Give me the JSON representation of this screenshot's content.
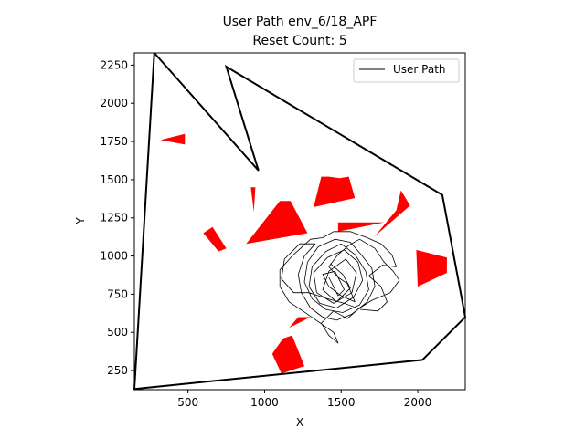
{
  "chart_data": {
    "type": "line",
    "title": "User Path env_6/18_APF",
    "subtitle": "Reset Count: 5",
    "xlabel": "X",
    "ylabel": "Y",
    "xlim": [
      150,
      2310
    ],
    "ylim": [
      125,
      2330
    ],
    "xticks": [
      500,
      1000,
      1500,
      2000
    ],
    "yticks": [
      250,
      500,
      750,
      1000,
      1250,
      1500,
      1750,
      2000,
      2250
    ],
    "grid": false,
    "legend": {
      "position": "top-right",
      "entries": [
        "User Path"
      ]
    },
    "boundary": {
      "name": "boundary",
      "color": "#000000",
      "points": [
        [
          280,
          2330
        ],
        [
          150,
          130
        ],
        [
          2030,
          320
        ],
        [
          2310,
          600
        ],
        [
          2160,
          1400
        ],
        [
          750,
          2240
        ],
        [
          960,
          1560
        ],
        [
          280,
          2330
        ]
      ]
    },
    "obstacles": {
      "color": "#ff0000",
      "polygons": [
        [
          [
            320,
            1760
          ],
          [
            480,
            1800
          ],
          [
            480,
            1730
          ]
        ],
        [
          [
            910,
            1450
          ],
          [
            940,
            1450
          ],
          [
            930,
            1290
          ]
        ],
        [
          [
            600,
            1150
          ],
          [
            660,
            1190
          ],
          [
            750,
            1050
          ],
          [
            700,
            1030
          ]
        ],
        [
          [
            880,
            1080
          ],
          [
            1100,
            1360
          ],
          [
            1170,
            1360
          ],
          [
            1280,
            1150
          ]
        ],
        [
          [
            1370,
            1520
          ],
          [
            1420,
            1520
          ],
          [
            1490,
            1510
          ],
          [
            1550,
            1520
          ],
          [
            1590,
            1380
          ],
          [
            1320,
            1320
          ]
        ],
        [
          [
            1480,
            1220
          ],
          [
            1780,
            1220
          ],
          [
            1480,
            1160
          ]
        ],
        [
          [
            1720,
            1130
          ],
          [
            1860,
            1300
          ],
          [
            1890,
            1430
          ],
          [
            1950,
            1330
          ]
        ],
        [
          [
            1990,
            1040
          ],
          [
            2190,
            990
          ],
          [
            2190,
            890
          ],
          [
            2000,
            800
          ]
        ],
        [
          [
            1160,
            530
          ],
          [
            1220,
            600
          ],
          [
            1300,
            600
          ]
        ],
        [
          [
            1050,
            360
          ],
          [
            1120,
            460
          ],
          [
            1180,
            480
          ],
          [
            1260,
            280
          ],
          [
            1110,
            230
          ]
        ]
      ]
    },
    "series": [
      {
        "name": "User Path",
        "color": "#000000",
        "points": [
          [
            1430,
            950
          ],
          [
            1510,
            880
          ],
          [
            1560,
            790
          ],
          [
            1470,
            700
          ],
          [
            1380,
            780
          ],
          [
            1420,
            900
          ],
          [
            1530,
            980
          ],
          [
            1600,
            890
          ],
          [
            1570,
            760
          ],
          [
            1450,
            690
          ],
          [
            1340,
            760
          ],
          [
            1320,
            890
          ],
          [
            1410,
            990
          ],
          [
            1520,
            1040
          ],
          [
            1610,
            960
          ],
          [
            1640,
            840
          ],
          [
            1580,
            730
          ],
          [
            1470,
            660
          ],
          [
            1360,
            690
          ],
          [
            1290,
            800
          ],
          [
            1310,
            930
          ],
          [
            1400,
            1030
          ],
          [
            1500,
            1080
          ],
          [
            1590,
            1010
          ],
          [
            1660,
            900
          ],
          [
            1680,
            780
          ],
          [
            1620,
            680
          ],
          [
            1510,
            630
          ],
          [
            1400,
            650
          ],
          [
            1310,
            720
          ],
          [
            1260,
            830
          ],
          [
            1280,
            960
          ],
          [
            1350,
            1060
          ],
          [
            1460,
            1110
          ],
          [
            1560,
            1090
          ],
          [
            1630,
            1010
          ],
          [
            1700,
            920
          ],
          [
            1720,
            800
          ],
          [
            1670,
            700
          ],
          [
            1570,
            620
          ],
          [
            1470,
            580
          ],
          [
            1380,
            600
          ],
          [
            1300,
            660
          ],
          [
            1240,
            760
          ],
          [
            1220,
            880
          ],
          [
            1260,
            1000
          ],
          [
            1330,
            1080
          ],
          [
            1230,
            1080
          ],
          [
            1130,
            980
          ],
          [
            1110,
            850
          ],
          [
            1190,
            760
          ],
          [
            1290,
            760
          ],
          [
            1410,
            720
          ],
          [
            1520,
            690
          ],
          [
            1630,
            650
          ],
          [
            1740,
            640
          ],
          [
            1800,
            700
          ],
          [
            1760,
            800
          ],
          [
            1680,
            870
          ],
          [
            1770,
            940
          ],
          [
            1860,
            930
          ],
          [
            1830,
            1010
          ],
          [
            1760,
            1080
          ],
          [
            1670,
            1120
          ],
          [
            1560,
            1160
          ],
          [
            1450,
            1160
          ],
          [
            1380,
            1120
          ],
          [
            1300,
            1110
          ],
          [
            1180,
            1000
          ],
          [
            1100,
            910
          ],
          [
            1100,
            800
          ],
          [
            1160,
            700
          ],
          [
            1250,
            640
          ],
          [
            1380,
            550
          ],
          [
            1450,
            500
          ],
          [
            1480,
            430
          ],
          [
            1420,
            480
          ],
          [
            1370,
            560
          ],
          [
            1450,
            640
          ],
          [
            1540,
            590
          ],
          [
            1620,
            660
          ],
          [
            1700,
            710
          ],
          [
            1820,
            760
          ],
          [
            1880,
            840
          ],
          [
            1840,
            900
          ],
          [
            1780,
            960
          ],
          [
            1720,
            1050
          ],
          [
            1620,
            1110
          ],
          [
            1550,
            1070
          ],
          [
            1480,
            1010
          ],
          [
            1420,
            930
          ],
          [
            1480,
            860
          ],
          [
            1540,
            820
          ],
          [
            1590,
            700
          ],
          [
            1500,
            740
          ],
          [
            1420,
            800
          ],
          [
            1380,
            880
          ],
          [
            1460,
            900
          ],
          [
            1520,
            780
          ],
          [
            1480,
            740
          ],
          [
            1420,
            860
          ]
        ]
      }
    ]
  }
}
